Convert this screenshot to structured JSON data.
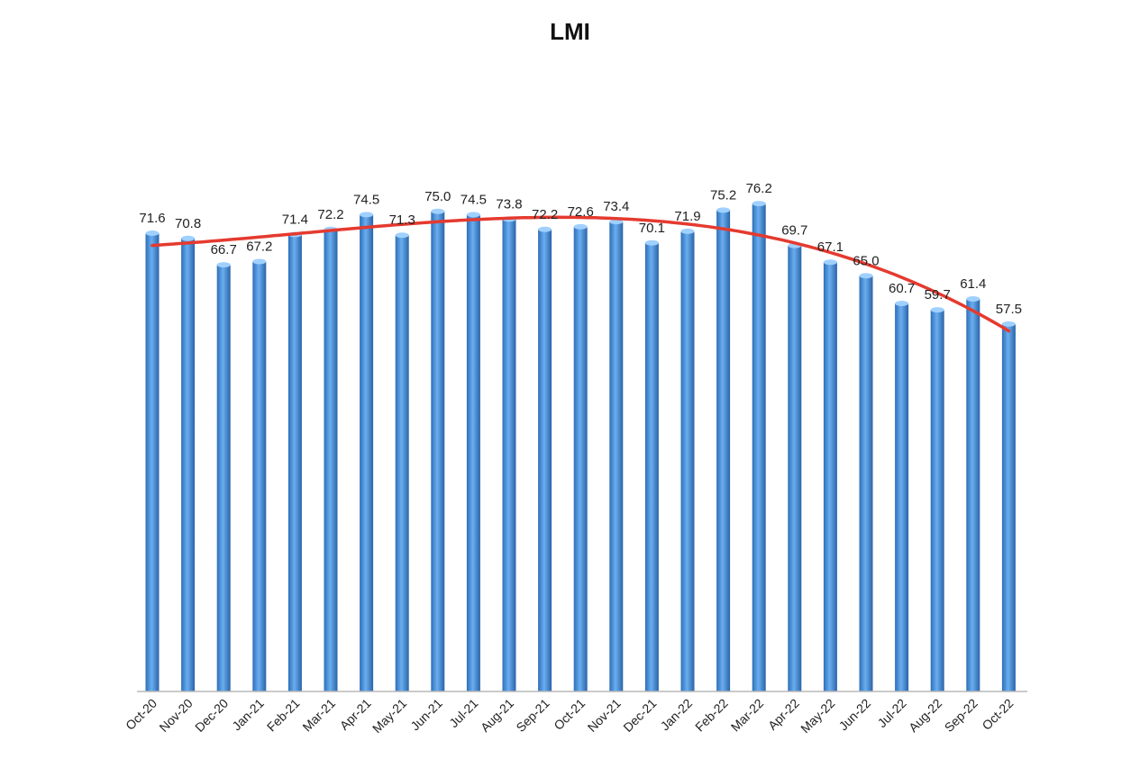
{
  "chart_data": {
    "type": "bar",
    "title": "LMI",
    "categories": [
      "Oct-20",
      "Nov-20",
      "Dec-20",
      "Jan-21",
      "Feb-21",
      "Mar-21",
      "Apr-21",
      "May-21",
      "Jun-21",
      "Jul-21",
      "Aug-21",
      "Sep-21",
      "Oct-21",
      "Nov-21",
      "Dec-21",
      "Jan-22",
      "Feb-22",
      "Mar-22",
      "Apr-22",
      "May-22",
      "Jun-22",
      "Jul-22",
      "Aug-22",
      "Sep-22",
      "Oct-22"
    ],
    "series": [
      {
        "values": [
          71.6,
          70.8,
          66.7,
          67.2,
          71.4,
          72.2,
          74.5,
          71.3,
          75.0,
          74.5,
          73.8,
          72.2,
          72.6,
          73.4,
          70.1,
          71.9,
          75.2,
          76.2,
          69.7,
          67.1,
          65.0,
          60.7,
          59.7,
          61.4,
          57.5
        ]
      }
    ],
    "value_labels": [
      "71.6",
      "70.8",
      "66.7",
      "67.2",
      "71.4",
      "72.2",
      "74.5",
      "71.3",
      "75.0",
      "74.5",
      "73.8",
      "72.2",
      "72.6",
      "73.4",
      "70.1",
      "71.9",
      "75.2",
      "76.2",
      "69.7",
      "67.1",
      "65.0",
      "60.7",
      "59.7",
      "61.4",
      "57.5"
    ],
    "trendline": {
      "type": "polynomial",
      "color": "#e53a2f"
    },
    "bar_color": "#4a8fd6",
    "y_axis_visible": false,
    "grid": false,
    "legend": "none",
    "ylim": [
      0,
      80
    ]
  }
}
